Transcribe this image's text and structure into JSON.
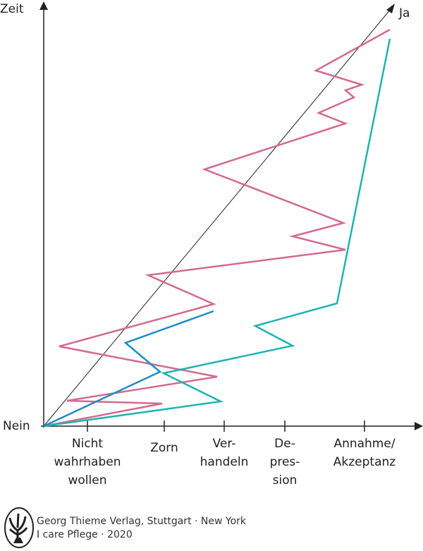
{
  "axes": {
    "y_label": "Zeit",
    "origin_label": "Nein",
    "diagonal_label": "Ja"
  },
  "stages": [
    [
      "Nicht",
      "wahrhaben",
      "wollen"
    ],
    [
      "Zorn"
    ],
    [
      "Ver-",
      "handeln"
    ],
    [
      "De-",
      "pres-",
      "sion"
    ],
    [
      "Annahme/",
      "Akzeptanz"
    ]
  ],
  "colors": {
    "pink": "#d36a8f",
    "blue": "#1f8cc4",
    "teal": "#1fb3b3",
    "axis": "#222222"
  },
  "footer": {
    "line1": "Georg Thieme Verlag, Stuttgart · New York",
    "line2": "I care Pflege · 2020",
    "logo": "thieme-tree-logo"
  }
}
